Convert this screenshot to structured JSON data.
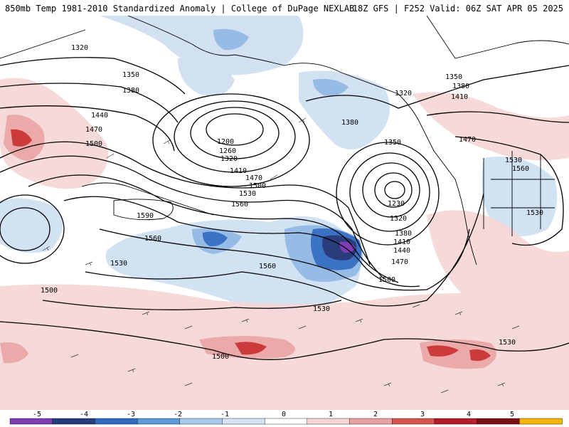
{
  "header": {
    "left_title": "850mb Temp 1981-2010 Standardized Anomaly | College of DuPage NEXLAB",
    "right_title": "18Z GFS | F252 Valid: 06Z SAT APR 05 2025"
  },
  "contour_labels": [
    "1320",
    "1350",
    "1380",
    "1440",
    "1470",
    "1500",
    "1200",
    "1260",
    "1320",
    "1410",
    "1470",
    "1500",
    "1530",
    "1560",
    "1590",
    "1560",
    "1530",
    "1500",
    "1560",
    "1530",
    "1500",
    "1380",
    "1350",
    "1230",
    "1320",
    "1380",
    "1410",
    "1440",
    "1470",
    "1500",
    "1350",
    "1380",
    "1410",
    "1320",
    "1470",
    "1530",
    "1560",
    "1530",
    "1530"
  ],
  "colorbar": {
    "ticks": [
      "-5",
      "-4",
      "-3",
      "-2",
      "-1",
      "0",
      "1",
      "2",
      "3",
      "4",
      "5"
    ],
    "colors": [
      "#7e3fb5",
      "#243d7d",
      "#2f6cc0",
      "#5b9ad8",
      "#a7c9ea",
      "#d5e3f3",
      "#ffffff",
      "#f6d5d5",
      "#eaa0a0",
      "#d9534f",
      "#b71c2a",
      "#7a0f16",
      "#f4b400"
    ]
  },
  "map": {
    "type": "contour-anomaly",
    "field": "850mb geopotential height (dam) contours with temperature standardized anomaly shading",
    "highs_lows": [
      "low near Bering Sea (1200)",
      "low off Pacific NW coast (1230)"
    ]
  }
}
